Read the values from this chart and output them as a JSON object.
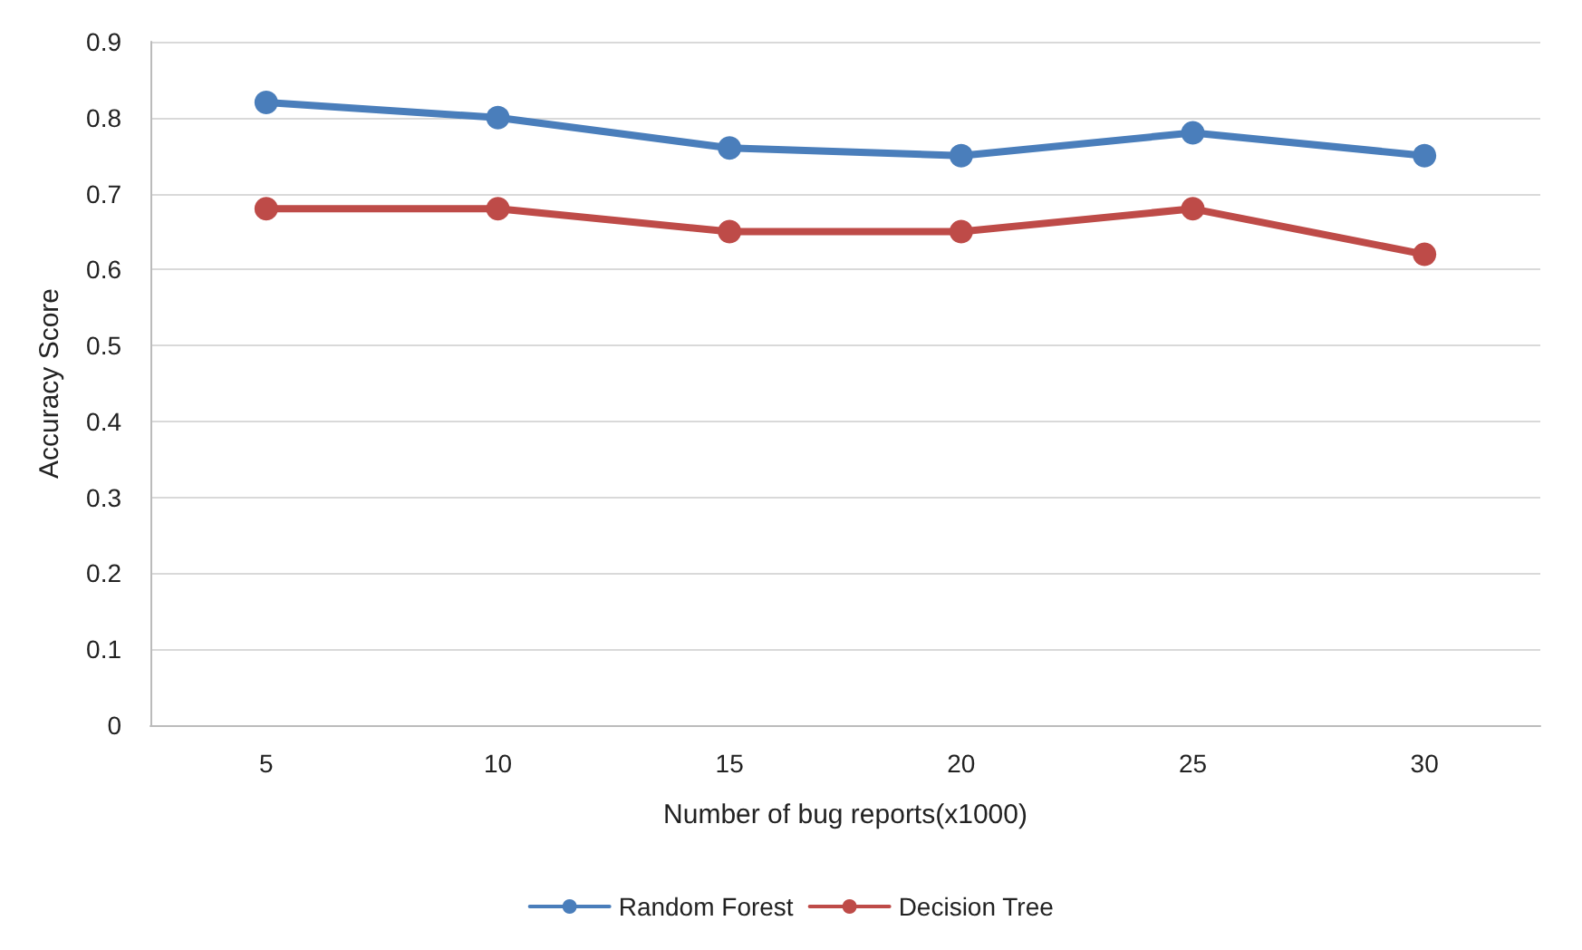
{
  "chart_data": {
    "type": "line",
    "xlabel": "Number of bug reports(x1000)",
    "ylabel": "Accuracy Score",
    "categories": [
      "5",
      "10",
      "15",
      "20",
      "25",
      "30"
    ],
    "series": [
      {
        "name": "Random Forest",
        "color": "#4a7ebb",
        "values": [
          0.82,
          0.8,
          0.76,
          0.75,
          0.78,
          0.75
        ]
      },
      {
        "name": "Decision Tree",
        "color": "#be4b48",
        "values": [
          0.68,
          0.68,
          0.65,
          0.65,
          0.68,
          0.62
        ]
      }
    ],
    "ylim": [
      0,
      0.9
    ],
    "yticks": [
      0,
      0.1,
      0.2,
      0.3,
      0.4,
      0.5,
      0.6,
      0.7,
      0.8,
      0.9
    ],
    "grid": "y",
    "legend": "bottom",
    "marker": "circle",
    "line_style": "solid"
  }
}
